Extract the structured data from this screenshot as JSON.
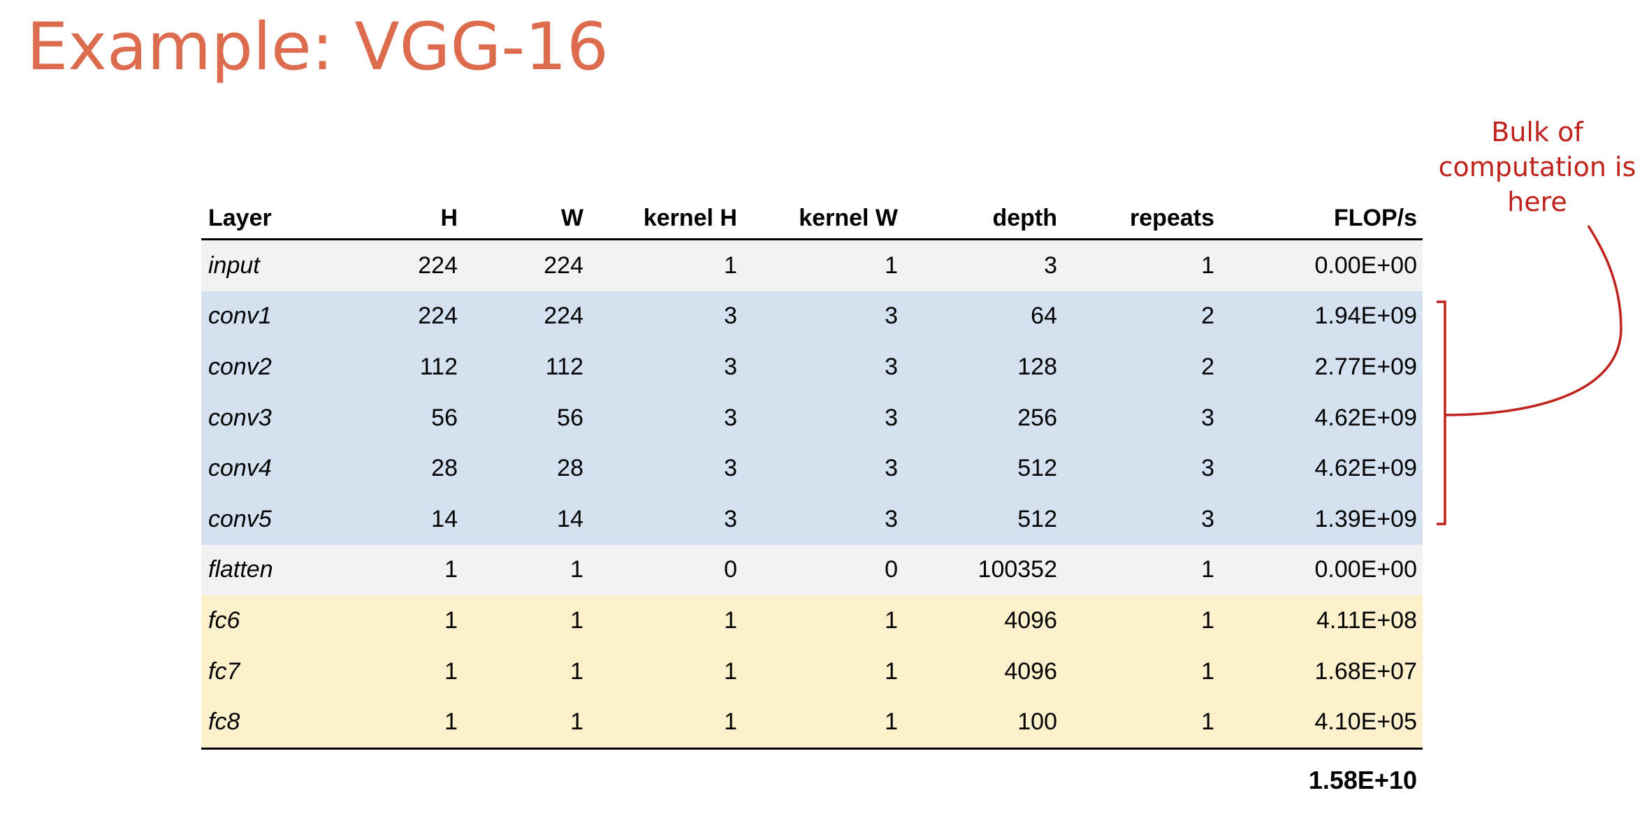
{
  "slide": {
    "title": "Example: VGG-16",
    "annotation_lines": [
      "Bulk of",
      "computation is",
      "here"
    ],
    "colors": {
      "title": "#dd6b4d",
      "annotation": "#c0221b",
      "row_other": "#f2f2f2",
      "row_conv": "#d4e1f1",
      "row_fc": "#fdf0cd"
    }
  },
  "table": {
    "headers": [
      "Layer",
      "H",
      "W",
      "kernel H",
      "kernel W",
      "depth",
      "repeats",
      "FLOP/s"
    ],
    "rows": [
      {
        "group": "other",
        "cells": [
          "input",
          "224",
          "224",
          "1",
          "1",
          "3",
          "1",
          "0.00E+00"
        ]
      },
      {
        "group": "conv",
        "cells": [
          "conv1",
          "224",
          "224",
          "3",
          "3",
          "64",
          "2",
          "1.94E+09"
        ]
      },
      {
        "group": "conv",
        "cells": [
          "conv2",
          "112",
          "112",
          "3",
          "3",
          "128",
          "2",
          "2.77E+09"
        ]
      },
      {
        "group": "conv",
        "cells": [
          "conv3",
          "56",
          "56",
          "3",
          "3",
          "256",
          "3",
          "4.62E+09"
        ]
      },
      {
        "group": "conv",
        "cells": [
          "conv4",
          "28",
          "28",
          "3",
          "3",
          "512",
          "3",
          "4.62E+09"
        ]
      },
      {
        "group": "conv",
        "cells": [
          "conv5",
          "14",
          "14",
          "3",
          "3",
          "512",
          "3",
          "1.39E+09"
        ]
      },
      {
        "group": "other",
        "cells": [
          "flatten",
          "1",
          "1",
          "0",
          "0",
          "100352",
          "1",
          "0.00E+00"
        ]
      },
      {
        "group": "fc",
        "cells": [
          "fc6",
          "1",
          "1",
          "1",
          "1",
          "4096",
          "1",
          "4.11E+08"
        ]
      },
      {
        "group": "fc",
        "cells": [
          "fc7",
          "1",
          "1",
          "1",
          "1",
          "4096",
          "1",
          "1.68E+07"
        ]
      },
      {
        "group": "fc",
        "cells": [
          "fc8",
          "1",
          "1",
          "1",
          "1",
          "100",
          "1",
          "4.10E+05"
        ]
      }
    ],
    "total": "1.58E+10"
  }
}
